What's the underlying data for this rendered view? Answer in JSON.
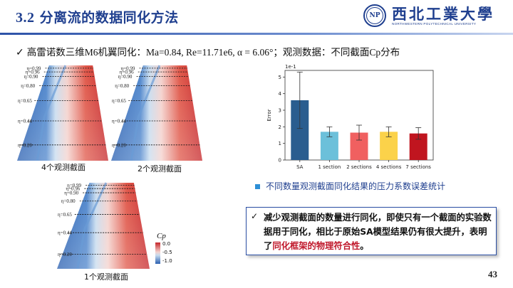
{
  "header": {
    "section_number": "3.2",
    "title": " 分离流的数据同化方法",
    "logo_name": "西北工業大學",
    "logo_english": "NORTHWESTERN POLYTECHNICAL UNIVERSITY"
  },
  "intro": {
    "check_icon": "✓",
    "text": "高雷诺数三维M6机翼同化：Ma=0.84, Re=11.71e6, α = 6.06°；观测数据：不同截面Cp分布"
  },
  "panels": [
    {
      "caption": "4个观测截面",
      "eta_labels": [
        "η=0.99",
        "η=0.96",
        "η=0.90",
        "η=0.80",
        "η=0.65",
        "η=0.44",
        "η=0.20"
      ]
    },
    {
      "caption": "2个观测截面",
      "eta_labels": [
        "η=0.99",
        "η=0.96",
        "η=0.90",
        "η=0.80",
        "η=0.65",
        "η=0.44",
        "η=0.20"
      ]
    },
    {
      "caption": "1个观测截面",
      "eta_labels": [
        "η=0.99",
        "η=0.96",
        "η=0.90",
        "η=0.80",
        "η=0.65",
        "η=0.44",
        "η=0.20"
      ]
    }
  ],
  "colorbar": {
    "label": "Cp",
    "ticks": [
      "0.0",
      "-0.5",
      "-1.0"
    ]
  },
  "chart_data": {
    "type": "bar",
    "categories": [
      "SA",
      "1 section",
      "2 sections",
      "4 sections",
      "7 sections"
    ],
    "values": [
      3.6,
      1.7,
      1.65,
      1.7,
      1.6
    ],
    "errors": [
      1.7,
      0.3,
      0.45,
      0.3,
      0.35
    ],
    "colors": [
      "#2a5d8f",
      "#6cc0da",
      "#f06060",
      "#fbd24a",
      "#c0151f"
    ],
    "ylabel": "Error",
    "scale_note": "1e-1",
    "ylim": [
      0,
      5.4
    ],
    "yticks": [
      0,
      1,
      2,
      3,
      4,
      5
    ]
  },
  "stat_label": "不同数量观测截面同化结果的压力系数误差统计",
  "note": {
    "check_icon": "✓",
    "text_normal": "减少观测截面的数量进行同化，即使只有一个截面的实验数据用于同化，相比于原始SA模型结果仍有很大提升，表明了",
    "text_highlight": "同化框架的物理符合性",
    "text_end": "。"
  },
  "page_number": "43"
}
